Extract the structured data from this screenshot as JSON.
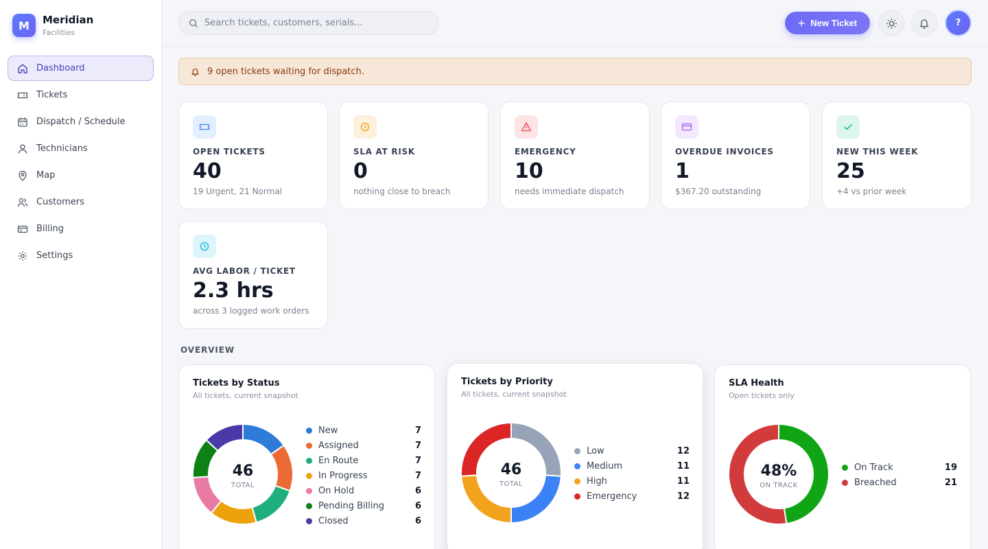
{
  "brand": {
    "logo_letter": "M",
    "name": "Meridian",
    "subtitle": "Facilities"
  },
  "sidebar": {
    "items": [
      {
        "label": "Dashboard",
        "icon": "home-icon",
        "active": true
      },
      {
        "label": "Tickets",
        "icon": "ticket-icon"
      },
      {
        "label": "Dispatch / Schedule",
        "icon": "calendar-icon"
      },
      {
        "label": "Technicians",
        "icon": "user-icon"
      },
      {
        "label": "Map",
        "icon": "map-pin-icon"
      },
      {
        "label": "Customers",
        "icon": "users-icon"
      },
      {
        "label": "Billing",
        "icon": "credit-card-icon"
      },
      {
        "label": "Settings",
        "icon": "gear-icon"
      }
    ]
  },
  "topbar": {
    "search_placeholder": "Search tickets, customers, serials...",
    "new_ticket_label": "New Ticket",
    "avatar_label": "?"
  },
  "alert": {
    "text": "9 open tickets waiting for dispatch."
  },
  "stats": [
    {
      "label": "OPEN TICKETS",
      "value": "40",
      "sub": "19 Urgent, 21 Normal",
      "icon": "ticket-icon",
      "color": "#3b82f6",
      "bg": "#e3eefe"
    },
    {
      "label": "SLA AT RISK",
      "value": "0",
      "sub": "nothing close to breach",
      "icon": "clock-icon",
      "color": "#f59e0b",
      "bg": "#fdf0dc"
    },
    {
      "label": "EMERGENCY",
      "value": "10",
      "sub": "needs immediate dispatch",
      "icon": "warning-icon",
      "color": "#ef4444",
      "bg": "#fde4e4"
    },
    {
      "label": "OVERDUE INVOICES",
      "value": "1",
      "sub": "$367.20 outstanding",
      "icon": "credit-card-icon",
      "color": "#a855f7",
      "bg": "#f3e8fd"
    },
    {
      "label": "NEW THIS WEEK",
      "value": "25",
      "sub": "+4 vs prior week",
      "icon": "check-icon",
      "color": "#10b981",
      "bg": "#ddf6ec"
    },
    {
      "label": "AVG LABOR / TICKET",
      "value": "2.3 hrs",
      "sub": "across 3 logged work orders",
      "icon": "clock-icon",
      "color": "#06b6d4",
      "bg": "#dcf5fa"
    }
  ],
  "overview_title": "OVERVIEW",
  "chart_data": [
    {
      "type": "pie",
      "title": "Tickets by Status",
      "subtitle": "All tickets, current snapshot",
      "center_value": "46",
      "center_label": "TOTAL",
      "categories": [
        "New",
        "Assigned",
        "En Route",
        "In Progress",
        "On Hold",
        "Pending Billing",
        "Closed"
      ],
      "values": [
        7,
        7,
        7,
        7,
        6,
        6,
        6
      ],
      "colors": [
        "#2f7bd9",
        "#ec6a35",
        "#1faf7e",
        "#eda20b",
        "#e97aa4",
        "#0e8016",
        "#4a3aa7"
      ]
    },
    {
      "type": "pie",
      "title": "Tickets by Priority",
      "subtitle": "All tickets, current snapshot",
      "center_value": "46",
      "center_label": "TOTAL",
      "categories": [
        "Low",
        "Medium",
        "High",
        "Emergency"
      ],
      "values": [
        12,
        11,
        11,
        12
      ],
      "colors": [
        "#97a3b6",
        "#3b82f6",
        "#f2a31d",
        "#dc2626"
      ]
    },
    {
      "type": "pie",
      "title": "SLA Health",
      "subtitle": "Open tickets only",
      "center_value": "48%",
      "center_label": "ON TRACK",
      "categories": [
        "On Track",
        "Breached"
      ],
      "values": [
        19,
        21
      ],
      "colors": [
        "#10a514",
        "#d13b3b"
      ]
    }
  ]
}
